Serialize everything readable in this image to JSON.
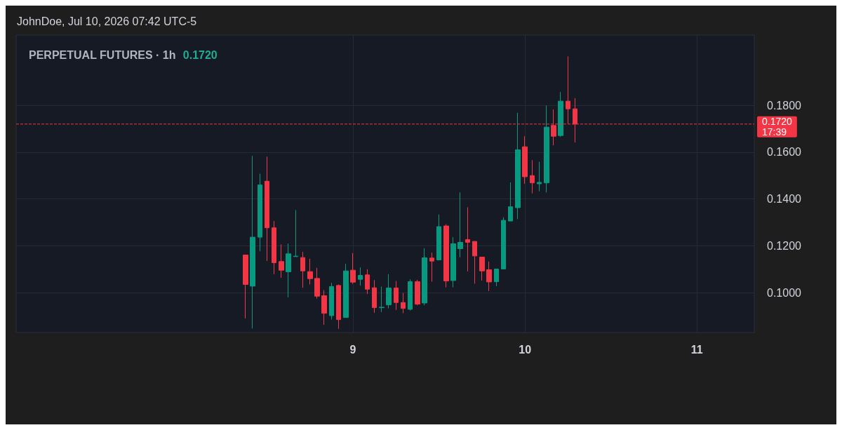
{
  "chart_data": {
    "type": "candlestick",
    "title": "PERPETUAL FUTURES · 1h",
    "subtitle": "0.1720",
    "annotations": [
      "JohnDoe, Jul 10, 2026 07:42 UTC-5"
    ],
    "x": [
      "2026-07-08T09:00",
      "2026-07-08T10:00",
      "2026-07-08T11:00",
      "2026-07-08T12:00",
      "2026-07-08T13:00",
      "2026-07-08T14:00",
      "2026-07-08T15:00",
      "2026-07-08T16:00",
      "2026-07-08T17:00",
      "2026-07-08T18:00",
      "2026-07-08T19:00",
      "2026-07-08T20:00",
      "2026-07-08T21:00",
      "2026-07-08T22:00",
      "2026-07-08T23:00",
      "2026-07-09T00:00",
      "2026-07-09T01:00",
      "2026-07-09T02:00",
      "2026-07-09T03:00",
      "2026-07-09T04:00",
      "2026-07-09T05:00",
      "2026-07-09T06:00",
      "2026-07-09T07:00",
      "2026-07-09T08:00",
      "2026-07-09T09:00",
      "2026-07-09T10:00",
      "2026-07-09T11:00",
      "2026-07-09T12:00",
      "2026-07-09T13:00",
      "2026-07-09T14:00",
      "2026-07-09T15:00",
      "2026-07-09T16:00",
      "2026-07-09T17:00",
      "2026-07-09T18:00",
      "2026-07-09T19:00",
      "2026-07-09T20:00",
      "2026-07-09T21:00",
      "2026-07-09T22:00",
      "2026-07-09T23:00",
      "2026-07-10T00:00",
      "2026-07-10T01:00",
      "2026-07-10T02:00",
      "2026-07-10T03:00",
      "2026-07-10T04:00",
      "2026-07-10T05:00",
      "2026-07-10T06:00",
      "2026-07-10T07:00"
    ],
    "ohlc": [
      [
        0.1161,
        0.1161,
        0.089,
        0.1035
      ],
      [
        0.1028,
        0.1584,
        0.0847,
        0.1237
      ],
      [
        0.1237,
        0.1508,
        0.1177,
        0.146
      ],
      [
        0.1476,
        0.1581,
        0.1135,
        0.1277
      ],
      [
        0.1277,
        0.1306,
        0.1079,
        0.1128
      ],
      [
        0.1133,
        0.1206,
        0.1064,
        0.1096
      ],
      [
        0.1089,
        0.121,
        0.098,
        0.1166
      ],
      [
        0.1154,
        0.1353,
        0.1154,
        0.1156
      ],
      [
        0.115,
        0.1174,
        0.1021,
        0.1093
      ],
      [
        0.109,
        0.1145,
        0.1035,
        0.106
      ],
      [
        0.1061,
        0.1106,
        0.0975,
        0.0985
      ],
      [
        0.0987,
        0.1011,
        0.0863,
        0.0912
      ],
      [
        0.0902,
        0.1042,
        0.0885,
        0.1026
      ],
      [
        0.1031,
        0.1035,
        0.0846,
        0.0885
      ],
      [
        0.0894,
        0.1123,
        0.0894,
        0.1093
      ],
      [
        0.1096,
        0.1169,
        0.1038,
        0.1045
      ],
      [
        0.1057,
        0.1108,
        0.103,
        0.1074
      ],
      [
        0.1076,
        0.11,
        0.0994,
        0.1015
      ],
      [
        0.1021,
        0.1054,
        0.0914,
        0.0936
      ],
      [
        0.0936,
        0.1026,
        0.0917,
        0.0938
      ],
      [
        0.0948,
        0.1079,
        0.0933,
        0.102
      ],
      [
        0.102,
        0.105,
        0.0926,
        0.0958
      ],
      [
        0.0958,
        0.0999,
        0.0912,
        0.0933
      ],
      [
        0.0929,
        0.1057,
        0.0924,
        0.1047
      ],
      [
        0.1047,
        0.1055,
        0.0946,
        0.0951
      ],
      [
        0.0956,
        0.119,
        0.0946,
        0.1149
      ],
      [
        0.1148,
        0.1171,
        0.1047,
        0.1135
      ],
      [
        0.114,
        0.1334,
        0.114,
        0.1282
      ],
      [
        0.1285,
        0.1292,
        0.1023,
        0.105
      ],
      [
        0.1052,
        0.1237,
        0.1023,
        0.1209
      ],
      [
        0.1188,
        0.1428,
        0.1151,
        0.1215
      ],
      [
        0.1227,
        0.1365,
        0.1091,
        0.1215
      ],
      [
        0.1219,
        0.1219,
        0.1038,
        0.1157
      ],
      [
        0.1152,
        0.1152,
        0.1052,
        0.1093
      ],
      [
        0.1098,
        0.1133,
        0.1007,
        0.1046
      ],
      [
        0.1047,
        0.1101,
        0.1028,
        0.1101
      ],
      [
        0.1101,
        0.1322,
        0.1101,
        0.1309
      ],
      [
        0.1306,
        0.1471,
        0.1306,
        0.1367
      ],
      [
        0.1363,
        0.1768,
        0.1314,
        0.161
      ],
      [
        0.1623,
        0.1668,
        0.1465,
        0.1495
      ],
      [
        0.15,
        0.1566,
        0.1424,
        0.1469
      ],
      [
        0.1465,
        0.1559,
        0.1433,
        0.1471
      ],
      [
        0.1469,
        0.1799,
        0.1428,
        0.1707
      ],
      [
        0.1714,
        0.1783,
        0.1629,
        0.1668
      ],
      [
        0.1671,
        0.1857,
        0.1665,
        0.1818
      ],
      [
        0.1818,
        0.2009,
        0.1723,
        0.1785
      ],
      [
        0.1785,
        0.1831,
        0.1641,
        0.172
      ]
    ],
    "colors": [
      "#f23645",
      "#089981",
      "#089981",
      "#f23645",
      "#f23645",
      "#f23645",
      "#089981",
      "#089981",
      "#f23645",
      "#f23645",
      "#f23645",
      "#f23645",
      "#089981",
      "#f23645",
      "#089981",
      "#f23645",
      "#089981",
      "#f23645",
      "#f23645",
      "#089981",
      "#089981",
      "#f23645",
      "#f23645",
      "#089981",
      "#f23645",
      "#089981",
      "#f23645",
      "#089981",
      "#f23645",
      "#089981",
      "#089981",
      "#f23645",
      "#f23645",
      "#f23645",
      "#f23645",
      "#089981",
      "#089981",
      "#089981",
      "#089981",
      "#f23645",
      "#f23645",
      "#089981",
      "#089981",
      "#f23645",
      "#089981",
      "#f23645",
      "#f23645"
    ],
    "xlim": [
      "2026-07-07T01:00",
      "2026-07-11T08:00"
    ],
    "xticks": [
      {
        "value": "2026-07-09",
        "label": "9"
      },
      {
        "value": "2026-07-10",
        "label": "10"
      },
      {
        "value": "2026-07-11",
        "label": "11"
      }
    ],
    "ylim": [
      0.083,
      0.21
    ],
    "yticks": [
      {
        "value": 0.1,
        "label": "0.1000"
      },
      {
        "value": 0.12,
        "label": "0.1200"
      },
      {
        "value": 0.14,
        "label": "0.1400"
      },
      {
        "value": 0.16,
        "label": "0.1600"
      },
      {
        "value": 0.18,
        "label": "0.1800"
      }
    ],
    "ref_lines": [
      {
        "axis": "y",
        "value": 0.172,
        "label": "0.1720\n17:39",
        "color": "#f23645",
        "line_style": "dashed"
      }
    ],
    "grid": true
  }
}
